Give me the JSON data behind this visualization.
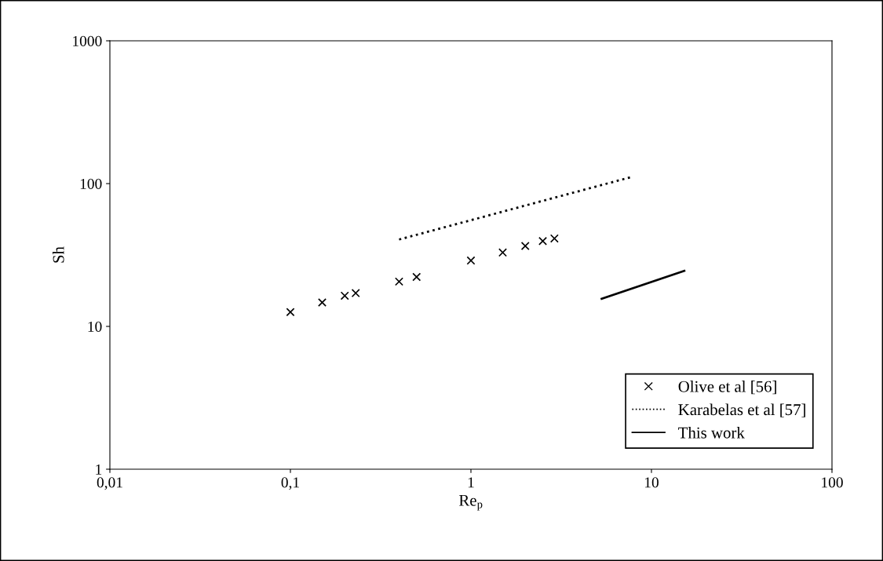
{
  "chart_data": {
    "type": "scatter",
    "xlabel": "Re$_{p}$",
    "ylabel": "Sh",
    "log": "xy",
    "grid": false,
    "legend": "bottom right",
    "xlim": [
      0.01,
      100
    ],
    "xticks": [
      {
        "value": 0.01,
        "label": "0,01"
      },
      {
        "value": 0.1,
        "label": "0,1"
      },
      1,
      10,
      100
    ],
    "ylim": [
      1,
      1000
    ],
    "yticks": [
      1,
      10,
      100,
      1000
    ],
    "series": [
      {
        "name": "Olive et al [56]",
        "marker": "cross",
        "color": "#000000",
        "x": [
          0.1,
          0.15,
          0.2,
          0.23,
          0.4,
          0.5,
          1,
          1.5,
          2,
          2.5,
          2.9
        ],
        "values": [
          12.6,
          14.7,
          16.4,
          17.1,
          20.6,
          22.2,
          28.9,
          32.9,
          36.6,
          39.6,
          41.3
        ]
      },
      {
        "name": "Karabelas et al [57]",
        "type": "line",
        "line_style": "dotted",
        "marker": "none",
        "color": "#000000",
        "x": [
          0.4,
          7.7
        ],
        "values": [
          40.6,
          111
        ]
      },
      {
        "name": "This work",
        "type": "line",
        "line_style": "solid",
        "marker": "none",
        "color": "#000000",
        "x": [
          5.3,
          15.2
        ],
        "values": [
          15.6,
          24.5
        ]
      }
    ]
  }
}
